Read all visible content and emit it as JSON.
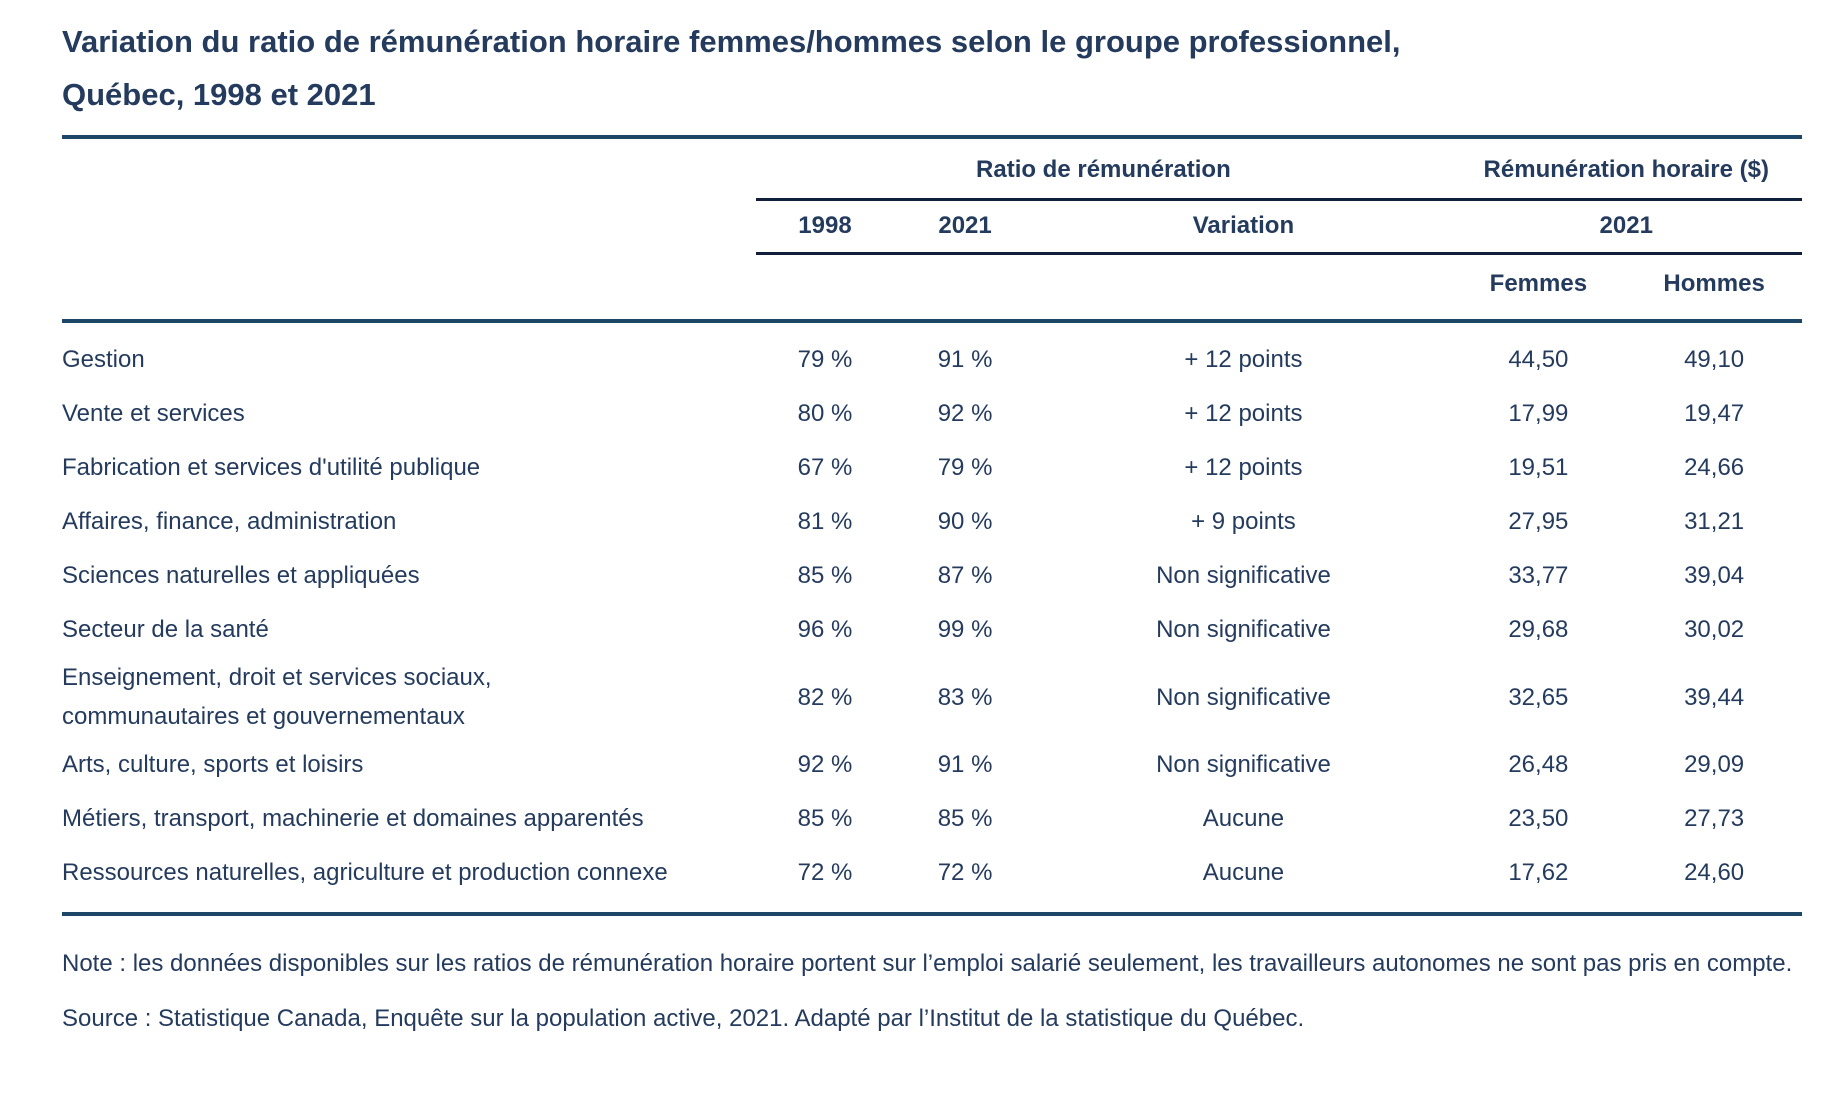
{
  "title": "Variation du ratio de rémunération horaire femmes/hommes selon le groupe professionnel,\nQuébec, 1998 et 2021",
  "colors": {
    "text": "#243B5E",
    "rule_outer": "#1C4767",
    "rule_inner": "#10203A",
    "bg": "#FFFFFF"
  },
  "table": {
    "group_headers": {
      "ratio": "Ratio de rémunération",
      "hourly": "Rémunération horaire ($)"
    },
    "sub_headers": {
      "y1998": "1998",
      "y2021": "2021",
      "variation": "Variation",
      "hourly_year": "2021"
    },
    "sex_headers": {
      "femmes": "Femmes",
      "hommes": "Hommes"
    },
    "rows": [
      {
        "label": "Gestion",
        "r1998": "79 %",
        "r2021": "91 %",
        "variation": "+ 12 points",
        "femmes": "44,50",
        "hommes": "49,10"
      },
      {
        "label": "Vente et services",
        "r1998": "80 %",
        "r2021": "92 %",
        "variation": "+ 12 points",
        "femmes": "17,99",
        "hommes": "19,47"
      },
      {
        "label": "Fabrication et services d'utilité publique",
        "r1998": "67 %",
        "r2021": "79 %",
        "variation": "+ 12 points",
        "femmes": "19,51",
        "hommes": "24,66"
      },
      {
        "label": "Affaires, finance, administration",
        "r1998": "81 %",
        "r2021": "90 %",
        "variation": "+ 9 points",
        "femmes": "27,95",
        "hommes": "31,21"
      },
      {
        "label": "Sciences naturelles et appliquées",
        "r1998": "85 %",
        "r2021": "87 %",
        "variation": "Non significative",
        "femmes": "33,77",
        "hommes": "39,04"
      },
      {
        "label": "Secteur de la santé",
        "r1998": "96 %",
        "r2021": "99 %",
        "variation": "Non significative",
        "femmes": "29,68",
        "hommes": "30,02"
      },
      {
        "label": "Enseignement, droit et services sociaux,\ncommunautaires et gouvernementaux",
        "r1998": "82 %",
        "r2021": "83 %",
        "variation": "Non significative",
        "femmes": "32,65",
        "hommes": "39,44"
      },
      {
        "label": "Arts, culture, sports et loisirs",
        "r1998": "92 %",
        "r2021": "91 %",
        "variation": "Non significative",
        "femmes": "26,48",
        "hommes": "29,09"
      },
      {
        "label": "Métiers, transport, machinerie et domaines apparentés",
        "r1998": "85 %",
        "r2021": "85 %",
        "variation": "Aucune",
        "femmes": "23,50",
        "hommes": "27,73"
      },
      {
        "label": "Ressources naturelles, agriculture et production connexe",
        "r1998": "72 %",
        "r2021": "72 %",
        "variation": "Aucune",
        "femmes": "17,62",
        "hommes": "24,60"
      }
    ]
  },
  "footer": {
    "note": "Note : les données disponibles sur les ratios de rémunération horaire portent sur l’emploi salarié seulement, les travailleurs autonomes ne sont pas pris en compte.",
    "source": "Source : Statistique Canada, Enquête sur la population active, 2021. Adapté par l’Institut de la statistique du Québec."
  },
  "chart_data": {
    "type": "table",
    "title": "Variation du ratio de rémunération horaire femmes/hommes selon le groupe professionnel, Québec, 1998 et 2021",
    "column_groups": [
      {
        "label": "Ratio de rémunération",
        "columns": [
          "1998",
          "2021",
          "Variation"
        ]
      },
      {
        "label": "Rémunération horaire ($)",
        "columns": [
          "2021 Femmes",
          "2021 Hommes"
        ]
      }
    ],
    "columns": [
      "Groupe professionnel",
      "Ratio 1998 (%)",
      "Ratio 2021 (%)",
      "Variation",
      "Rémunération horaire 2021 Femmes ($)",
      "Rémunération horaire 2021 Hommes ($)"
    ],
    "rows": [
      {
        "groupe": "Gestion",
        "ratio_1998_pct": 79,
        "ratio_2021_pct": 91,
        "variation": "+ 12 points",
        "femmes_2021": 44.5,
        "hommes_2021": 49.1
      },
      {
        "groupe": "Vente et services",
        "ratio_1998_pct": 80,
        "ratio_2021_pct": 92,
        "variation": "+ 12 points",
        "femmes_2021": 17.99,
        "hommes_2021": 19.47
      },
      {
        "groupe": "Fabrication et services d'utilité publique",
        "ratio_1998_pct": 67,
        "ratio_2021_pct": 79,
        "variation": "+ 12 points",
        "femmes_2021": 19.51,
        "hommes_2021": 24.66
      },
      {
        "groupe": "Affaires, finance, administration",
        "ratio_1998_pct": 81,
        "ratio_2021_pct": 90,
        "variation": "+ 9 points",
        "femmes_2021": 27.95,
        "hommes_2021": 31.21
      },
      {
        "groupe": "Sciences naturelles et appliquées",
        "ratio_1998_pct": 85,
        "ratio_2021_pct": 87,
        "variation": "Non significative",
        "femmes_2021": 33.77,
        "hommes_2021": 39.04
      },
      {
        "groupe": "Secteur de la santé",
        "ratio_1998_pct": 96,
        "ratio_2021_pct": 99,
        "variation": "Non significative",
        "femmes_2021": 29.68,
        "hommes_2021": 30.02
      },
      {
        "groupe": "Enseignement, droit et services sociaux, communautaires et gouvernementaux",
        "ratio_1998_pct": 82,
        "ratio_2021_pct": 83,
        "variation": "Non significative",
        "femmes_2021": 32.65,
        "hommes_2021": 39.44
      },
      {
        "groupe": "Arts, culture, sports et loisirs",
        "ratio_1998_pct": 92,
        "ratio_2021_pct": 91,
        "variation": "Non significative",
        "femmes_2021": 26.48,
        "hommes_2021": 29.09
      },
      {
        "groupe": "Métiers, transport, machinerie et domaines apparentés",
        "ratio_1998_pct": 85,
        "ratio_2021_pct": 85,
        "variation": "Aucune",
        "femmes_2021": 23.5,
        "hommes_2021": 27.73
      },
      {
        "groupe": "Ressources naturelles, agriculture et production connexe",
        "ratio_1998_pct": 72,
        "ratio_2021_pct": 72,
        "variation": "Aucune",
        "femmes_2021": 17.62,
        "hommes_2021": 24.6
      }
    ]
  }
}
